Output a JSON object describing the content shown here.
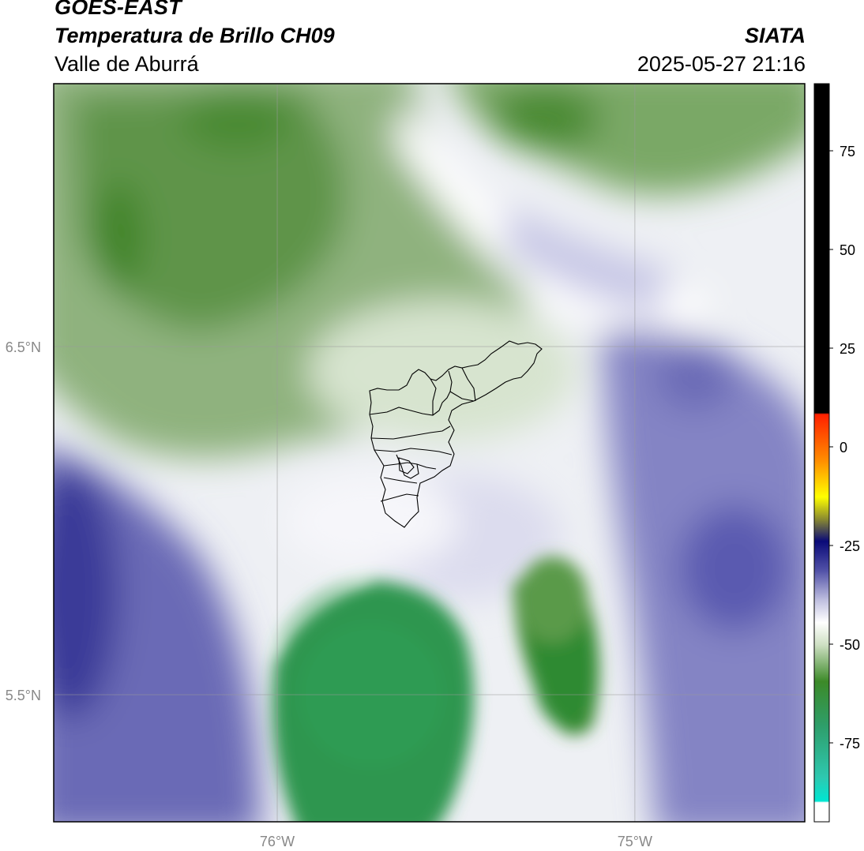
{
  "header": {
    "satellite": "GOES-EAST",
    "product": "Temperatura de Brillo CH09",
    "region": "Valle de Aburrá",
    "organization": "SIATA",
    "datetime": "2025-05-27 21:16"
  },
  "map": {
    "lon_ticks": [
      {
        "value": -76,
        "label": "76°W"
      },
      {
        "value": -75,
        "label": "75°W"
      }
    ],
    "lat_ticks": [
      {
        "value": 6.5,
        "label": "6.5°N"
      },
      {
        "value": 5.5,
        "label": "5.5°N"
      }
    ],
    "lon_range": [
      -76.625,
      -74.525
    ],
    "lat_range": [
      5.135,
      7.255
    ],
    "gridlines": true,
    "overlay": "municipal boundaries (Valle de Aburrá)"
  },
  "colorbar": {
    "range": [
      -95,
      92
    ],
    "ticks": [
      "75",
      "50",
      "25",
      "0",
      "-25",
      "-50",
      "-75"
    ],
    "tick_values": [
      75,
      50,
      25,
      0,
      -25,
      -50,
      -75
    ],
    "colors": {
      "warm_black": "#000000",
      "red": "#ff2000",
      "orange": "#ff8c00",
      "yellow": "#ffff00",
      "navy": "#0a0a78",
      "purple": "#5252a8",
      "white": "#ffffff",
      "green": "#3c8a28",
      "sea_green": "#2e9e6a",
      "cyan": "#00e6d2"
    }
  }
}
